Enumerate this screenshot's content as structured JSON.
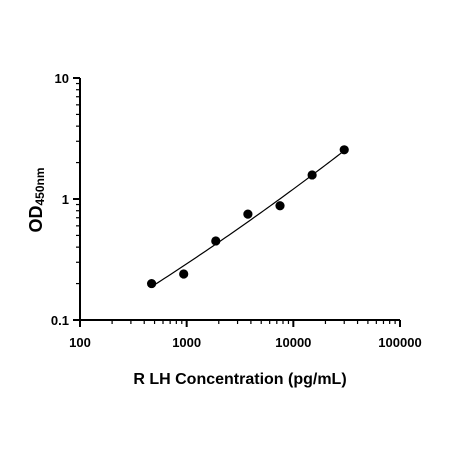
{
  "chart_data": {
    "type": "scatter",
    "xlabel": "R LH Concentration (pg/mL)",
    "ylabel": "OD",
    "ylabel_subscript": "450nm",
    "xscale": "log",
    "yscale": "log",
    "xlim": [
      100,
      100000
    ],
    "ylim": [
      0.1,
      10
    ],
    "xticks": [
      "100",
      "1000",
      "10000",
      "100000"
    ],
    "yticks": [
      "0.1",
      "1",
      "10"
    ],
    "grid": false,
    "fit_line": true,
    "points": [
      {
        "x": 469,
        "y": 0.2
      },
      {
        "x": 938,
        "y": 0.24
      },
      {
        "x": 1875,
        "y": 0.45
      },
      {
        "x": 3750,
        "y": 0.75
      },
      {
        "x": 7500,
        "y": 0.88
      },
      {
        "x": 15000,
        "y": 1.58
      },
      {
        "x": 30000,
        "y": 2.55
      }
    ],
    "colors": {
      "points": "#000000",
      "line": "#000000",
      "axis": "#000000"
    }
  }
}
